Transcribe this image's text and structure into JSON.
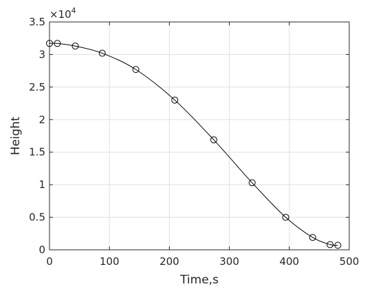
{
  "chart_data": {
    "type": "line",
    "title": "",
    "xlabel": "Time,s",
    "ylabel": "Height",
    "y_multiplier_label": "×10",
    "y_multiplier_exponent": "4",
    "xlim": [
      0,
      500
    ],
    "ylim": [
      0,
      35000
    ],
    "x_ticks": [
      0,
      100,
      200,
      300,
      400,
      500
    ],
    "y_ticks": [
      0,
      5000,
      10000,
      15000,
      20000,
      25000,
      30000,
      35000
    ],
    "x_tick_labels": [
      "0",
      "100",
      "200",
      "300",
      "400",
      "500"
    ],
    "y_tick_labels": [
      "0",
      "0.5",
      "1",
      "1.5",
      "2",
      "2.5",
      "3",
      "3.5"
    ],
    "grid": true,
    "legend": "none",
    "series": [
      {
        "marker": "circle-open",
        "x": [
          0,
          13,
          43,
          88,
          144,
          209,
          274,
          338,
          394,
          439,
          468,
          481
        ],
        "y": [
          31700,
          31700,
          31300,
          30200,
          27700,
          23000,
          16900,
          10300,
          5000,
          1900,
          800,
          700
        ]
      }
    ],
    "colors": {
      "line": "#000000",
      "grid": "#dfdfdf",
      "axis": "#262626",
      "background": "#ffffff"
    }
  }
}
